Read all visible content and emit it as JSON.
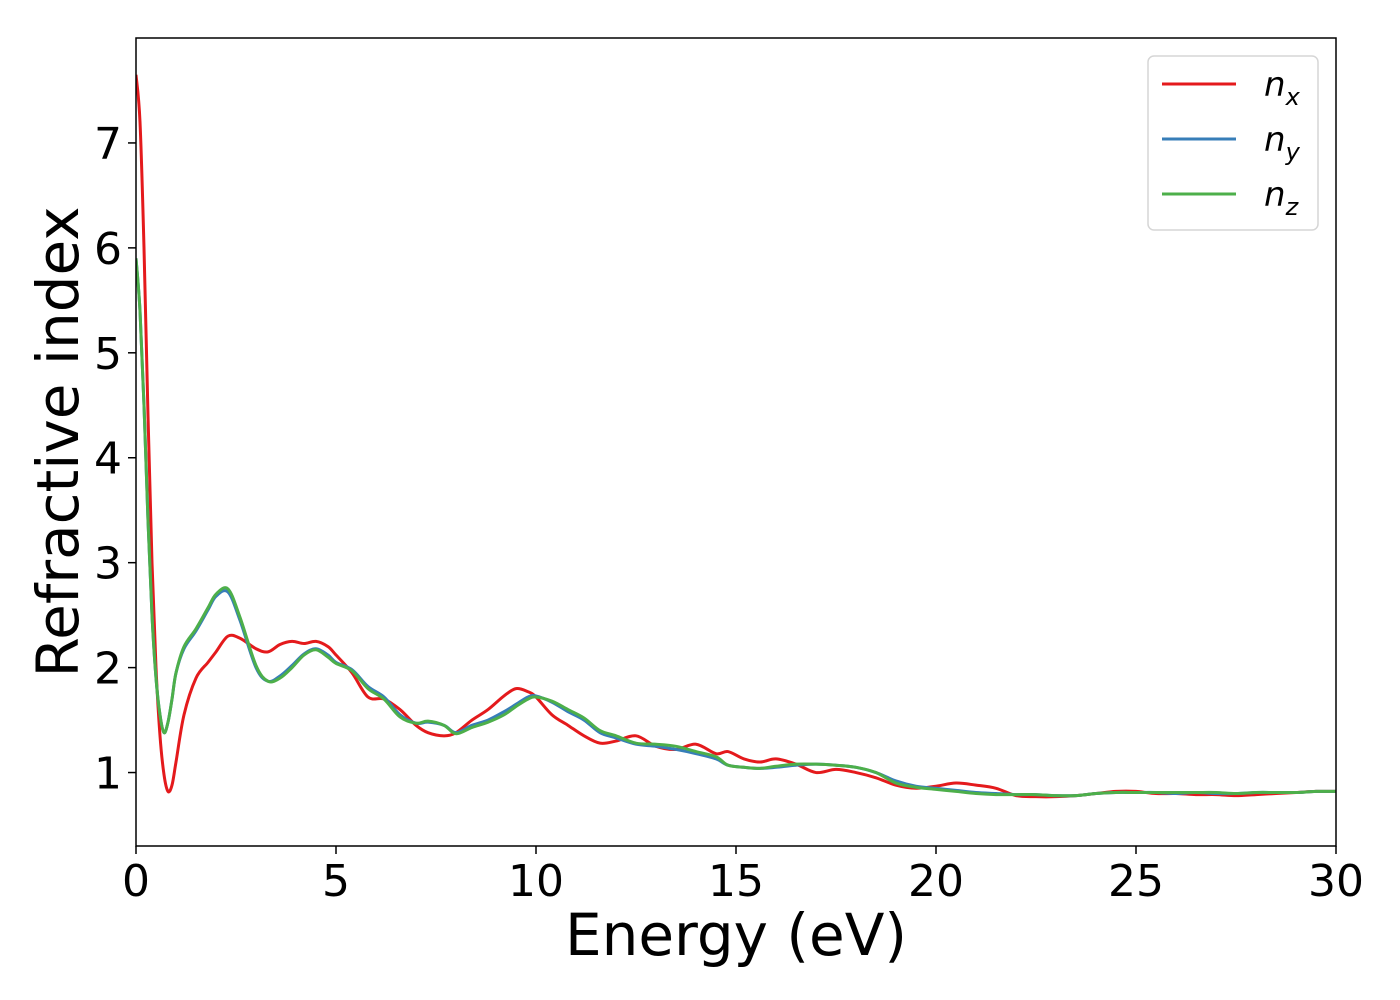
{
  "chart_data": {
    "type": "line",
    "xlabel": "Energy (eV)",
    "ylabel": "Refractive index",
    "xlim": [
      0,
      30
    ],
    "ylim": [
      0.3,
      8.0
    ],
    "xticks": [
      0,
      5,
      10,
      15,
      20,
      25,
      30
    ],
    "yticks": [
      1,
      2,
      3,
      4,
      5,
      6,
      7
    ],
    "grid": false,
    "legend_position": "top-right",
    "series": [
      {
        "name": "n",
        "subscript": "x",
        "color": "#e41a1c",
        "x": [
          0,
          0.1,
          0.2,
          0.3,
          0.4,
          0.5,
          0.6,
          0.7,
          0.8,
          0.9,
          1.0,
          1.2,
          1.5,
          1.8,
          2.0,
          2.3,
          2.6,
          3.0,
          3.3,
          3.6,
          3.9,
          4.2,
          4.5,
          4.8,
          5.0,
          5.4,
          5.8,
          6.2,
          6.6,
          7.0,
          7.3,
          7.7,
          8.0,
          8.4,
          8.8,
          9.2,
          9.5,
          9.8,
          10.0,
          10.4,
          10.8,
          11.2,
          11.6,
          12.0,
          12.5,
          13.0,
          13.5,
          14.0,
          14.5,
          14.8,
          15.2,
          15.6,
          16.0,
          16.5,
          17.0,
          17.5,
          18.0,
          18.5,
          19.0,
          19.5,
          20.0,
          20.5,
          21.0,
          21.5,
          22.0,
          22.5,
          23.0,
          23.5,
          24.0,
          24.5,
          25.0,
          25.5,
          26.0,
          26.5,
          27.0,
          27.5,
          28.0,
          28.5,
          29.0,
          29.5,
          30.0
        ],
        "y": [
          7.65,
          7.2,
          6.0,
          4.4,
          3.0,
          2.0,
          1.35,
          0.98,
          0.82,
          0.88,
          1.1,
          1.55,
          1.9,
          2.05,
          2.15,
          2.3,
          2.28,
          2.18,
          2.15,
          2.22,
          2.25,
          2.23,
          2.25,
          2.2,
          2.12,
          1.95,
          1.72,
          1.7,
          1.6,
          1.45,
          1.38,
          1.35,
          1.38,
          1.5,
          1.6,
          1.73,
          1.8,
          1.77,
          1.72,
          1.55,
          1.45,
          1.35,
          1.28,
          1.3,
          1.35,
          1.25,
          1.22,
          1.27,
          1.18,
          1.2,
          1.13,
          1.1,
          1.13,
          1.08,
          1.0,
          1.03,
          1.0,
          0.95,
          0.88,
          0.85,
          0.87,
          0.9,
          0.88,
          0.85,
          0.78,
          0.77,
          0.77,
          0.78,
          0.8,
          0.82,
          0.82,
          0.8,
          0.8,
          0.79,
          0.79,
          0.78,
          0.79,
          0.8,
          0.81,
          0.82,
          0.82
        ]
      },
      {
        "name": "n",
        "subscript": "y",
        "color": "#377eb8",
        "x": [
          0,
          0.1,
          0.2,
          0.3,
          0.4,
          0.5,
          0.6,
          0.7,
          0.8,
          0.9,
          1.0,
          1.2,
          1.5,
          1.8,
          2.0,
          2.3,
          2.6,
          3.0,
          3.3,
          3.6,
          3.9,
          4.2,
          4.5,
          4.8,
          5.0,
          5.4,
          5.8,
          6.2,
          6.6,
          7.0,
          7.3,
          7.7,
          8.0,
          8.4,
          8.8,
          9.2,
          9.5,
          9.8,
          10.0,
          10.4,
          10.8,
          11.2,
          11.6,
          12.0,
          12.5,
          13.0,
          13.5,
          14.0,
          14.5,
          14.8,
          15.2,
          15.6,
          16.0,
          16.5,
          17.0,
          17.5,
          18.0,
          18.5,
          19.0,
          19.5,
          20.0,
          20.5,
          21.0,
          21.5,
          22.0,
          22.5,
          23.0,
          23.5,
          24.0,
          24.5,
          25.0,
          25.5,
          26.0,
          26.5,
          27.0,
          27.5,
          28.0,
          28.5,
          29.0,
          29.5,
          30.0
        ],
        "y": [
          5.9,
          5.4,
          4.5,
          3.4,
          2.5,
          1.9,
          1.55,
          1.38,
          1.48,
          1.7,
          1.95,
          2.18,
          2.35,
          2.55,
          2.68,
          2.72,
          2.45,
          2.0,
          1.87,
          1.92,
          2.02,
          2.13,
          2.18,
          2.12,
          2.05,
          1.98,
          1.82,
          1.72,
          1.55,
          1.47,
          1.48,
          1.45,
          1.38,
          1.45,
          1.5,
          1.58,
          1.65,
          1.72,
          1.73,
          1.67,
          1.58,
          1.5,
          1.38,
          1.33,
          1.27,
          1.25,
          1.22,
          1.18,
          1.13,
          1.07,
          1.05,
          1.04,
          1.05,
          1.07,
          1.08,
          1.07,
          1.05,
          1.0,
          0.92,
          0.87,
          0.85,
          0.83,
          0.81,
          0.8,
          0.79,
          0.79,
          0.78,
          0.78,
          0.8,
          0.81,
          0.81,
          0.81,
          0.8,
          0.81,
          0.8,
          0.8,
          0.81,
          0.81,
          0.81,
          0.82,
          0.82
        ]
      },
      {
        "name": "n",
        "subscript": "z",
        "color": "#4daf4a",
        "x": [
          0,
          0.1,
          0.2,
          0.3,
          0.4,
          0.5,
          0.6,
          0.7,
          0.8,
          0.9,
          1.0,
          1.2,
          1.5,
          1.8,
          2.0,
          2.3,
          2.6,
          3.0,
          3.3,
          3.6,
          3.9,
          4.2,
          4.5,
          4.8,
          5.0,
          5.4,
          5.8,
          6.2,
          6.6,
          7.0,
          7.3,
          7.7,
          8.0,
          8.4,
          8.8,
          9.2,
          9.5,
          9.8,
          10.0,
          10.4,
          10.8,
          11.2,
          11.6,
          12.0,
          12.5,
          13.0,
          13.5,
          14.0,
          14.5,
          14.8,
          15.2,
          15.6,
          16.0,
          16.5,
          17.0,
          17.5,
          18.0,
          18.5,
          19.0,
          19.5,
          20.0,
          20.5,
          21.0,
          21.5,
          22.0,
          22.5,
          23.0,
          23.5,
          24.0,
          24.5,
          25.0,
          25.5,
          26.0,
          26.5,
          27.0,
          27.5,
          28.0,
          28.5,
          29.0,
          29.5,
          30.0
        ],
        "y": [
          5.9,
          5.4,
          4.5,
          3.4,
          2.5,
          1.9,
          1.55,
          1.38,
          1.48,
          1.7,
          1.95,
          2.2,
          2.37,
          2.57,
          2.7,
          2.75,
          2.48,
          2.02,
          1.87,
          1.9,
          2.0,
          2.12,
          2.17,
          2.1,
          2.04,
          1.97,
          1.8,
          1.7,
          1.53,
          1.47,
          1.49,
          1.45,
          1.37,
          1.43,
          1.48,
          1.55,
          1.63,
          1.7,
          1.72,
          1.68,
          1.6,
          1.52,
          1.4,
          1.35,
          1.28,
          1.27,
          1.25,
          1.2,
          1.15,
          1.07,
          1.05,
          1.04,
          1.06,
          1.08,
          1.08,
          1.07,
          1.05,
          1.0,
          0.9,
          0.86,
          0.84,
          0.82,
          0.8,
          0.79,
          0.79,
          0.79,
          0.78,
          0.78,
          0.8,
          0.81,
          0.81,
          0.81,
          0.81,
          0.81,
          0.81,
          0.8,
          0.81,
          0.81,
          0.81,
          0.82,
          0.82
        ]
      }
    ]
  }
}
